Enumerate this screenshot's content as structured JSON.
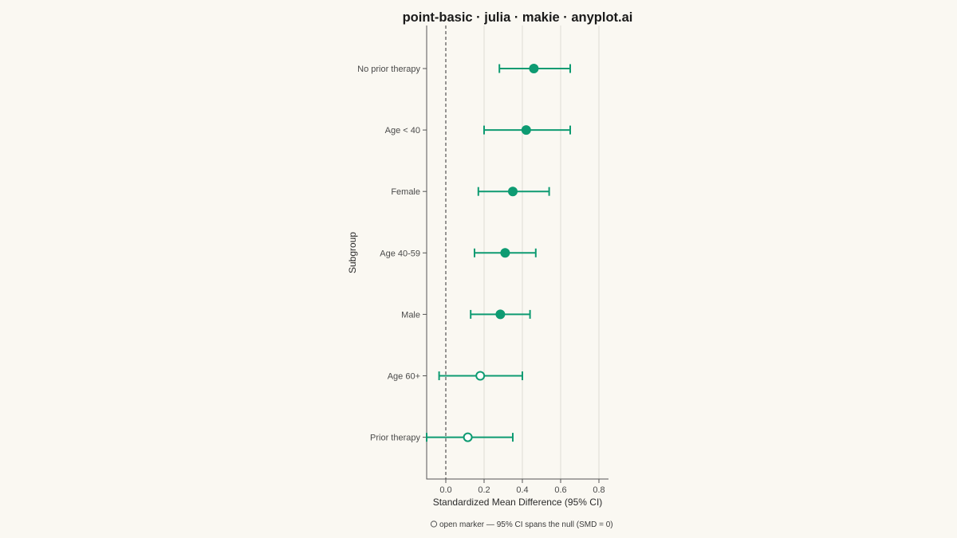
{
  "chart_data": {
    "type": "scatter",
    "title": "point-basic · julia · makie · anyplot.ai",
    "xlabel": "Standardized Mean Difference (95% CI)",
    "ylabel": "Subgroup",
    "xlim": [
      -0.1,
      0.85
    ],
    "x_ticks": [
      0.0,
      0.2,
      0.4,
      0.6,
      0.8
    ],
    "x_tick_labels": [
      "0.0",
      "0.2",
      "0.4",
      "0.6",
      "0.8"
    ],
    "reference_line_x": 0,
    "grid": "vertical",
    "points": [
      {
        "label": "No prior therapy",
        "estimate": 0.46,
        "lower": 0.28,
        "upper": 0.65,
        "significant": true
      },
      {
        "label": "Age < 40",
        "estimate": 0.42,
        "lower": 0.2,
        "upper": 0.65,
        "significant": true
      },
      {
        "label": "Female",
        "estimate": 0.35,
        "lower": 0.17,
        "upper": 0.54,
        "significant": true
      },
      {
        "label": "Age 40-59",
        "estimate": 0.31,
        "lower": 0.15,
        "upper": 0.47,
        "significant": true
      },
      {
        "label": "Male",
        "estimate": 0.285,
        "lower": 0.13,
        "upper": 0.44,
        "significant": true
      },
      {
        "label": "Age 60+",
        "estimate": 0.18,
        "lower": -0.035,
        "upper": 0.4,
        "significant": false
      },
      {
        "label": "Prior therapy",
        "estimate": 0.115,
        "lower": -0.1,
        "upper": 0.35,
        "significant": false
      }
    ],
    "note": "open marker — 95% CI spans the null (SMD = 0)",
    "colors": {
      "marker": "#0E9B72",
      "background": "#FAF8F2",
      "grid": "#DDDBD4",
      "reference": "#444444",
      "axis": "#555555"
    }
  }
}
